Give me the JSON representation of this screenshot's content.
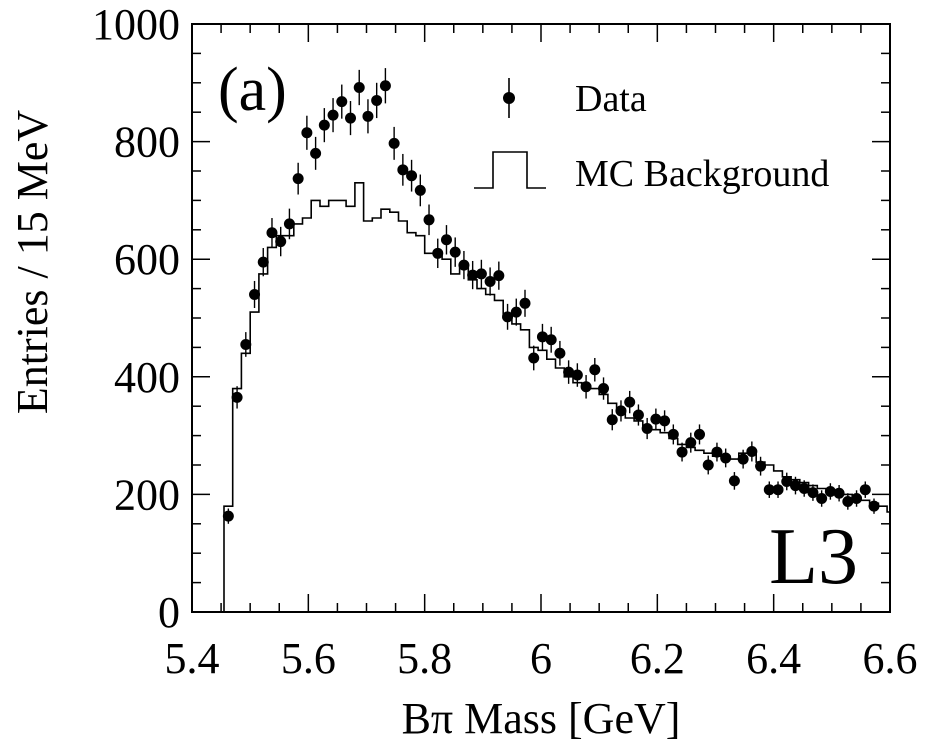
{
  "chart_data": {
    "type": "scatter",
    "panel_label": "(a)",
    "experiment_label": "L3",
    "xlabel": "Bπ Mass [GeV]",
    "ylabel": "Entries / 15 MeV",
    "xlim": [
      5.4,
      6.6
    ],
    "ylim": [
      0,
      1000
    ],
    "x_ticks": [
      5.4,
      5.6,
      5.8,
      6,
      6.2,
      6.4,
      6.6
    ],
    "x_tick_labels": [
      "5.4",
      "5.6",
      "5.8",
      "6",
      "6.2",
      "6.4",
      "6.6"
    ],
    "y_ticks": [
      0,
      200,
      400,
      600,
      800,
      1000
    ],
    "y_tick_labels": [
      "0",
      "200",
      "400",
      "600",
      "800",
      "1000"
    ],
    "grid": false,
    "legend_placement": "top-right",
    "legend": [
      {
        "label": "Data",
        "marker": "point-with-error-bar"
      },
      {
        "label": "MC Background",
        "marker": "step-histogram"
      }
    ],
    "series": [
      {
        "name": "Data",
        "style": "points",
        "color": "#000000",
        "x": [
          5.4625,
          5.4775,
          5.4925,
          5.5075,
          5.5225,
          5.5375,
          5.5525,
          5.5675,
          5.5825,
          5.5975,
          5.6125,
          5.6275,
          5.6425,
          5.6575,
          5.6725,
          5.6875,
          5.7025,
          5.7175,
          5.7325,
          5.7475,
          5.7625,
          5.7775,
          5.7925,
          5.8075,
          5.8225,
          5.8375,
          5.8525,
          5.8675,
          5.8825,
          5.8975,
          5.9125,
          5.9275,
          5.9425,
          5.9575,
          5.9725,
          5.9875,
          6.0025,
          6.0175,
          6.0325,
          6.0475,
          6.0625,
          6.0775,
          6.0925,
          6.1075,
          6.1225,
          6.1375,
          6.1525,
          6.1675,
          6.1825,
          6.1975,
          6.2125,
          6.2275,
          6.2425,
          6.2575,
          6.2725,
          6.2875,
          6.3025,
          6.3175,
          6.3325,
          6.3475,
          6.3625,
          6.3775,
          6.3925,
          6.4075,
          6.4225,
          6.4375,
          6.4525,
          6.4675,
          6.4825,
          6.4975,
          6.5125,
          6.5275,
          6.5425,
          6.5575,
          6.5725
        ],
        "y": [
          163,
          365,
          455,
          540,
          595,
          645,
          630,
          660,
          737,
          815,
          780,
          828,
          845,
          868,
          840,
          892,
          843,
          870,
          895,
          797,
          752,
          742,
          717,
          667,
          610,
          633,
          612,
          590,
          573,
          575,
          562,
          572,
          502,
          510,
          525,
          432,
          468,
          463,
          440,
          408,
          403,
          383,
          412,
          380,
          327,
          342,
          357,
          335,
          312,
          328,
          325,
          302,
          272,
          288,
          302,
          250,
          272,
          262,
          223,
          260,
          273,
          248,
          208,
          208,
          222,
          215,
          210,
          203,
          193,
          205,
          202,
          188,
          193,
          208,
          180
        ],
        "yerr": [
          13,
          19,
          21,
          23,
          24,
          25,
          25,
          26,
          27,
          29,
          28,
          29,
          29,
          29,
          29,
          30,
          29,
          30,
          30,
          28,
          27,
          27,
          27,
          26,
          25,
          25,
          25,
          24,
          24,
          24,
          24,
          24,
          22,
          23,
          23,
          21,
          22,
          22,
          21,
          20,
          20,
          20,
          20,
          19,
          18,
          18,
          19,
          18,
          18,
          18,
          18,
          17,
          16,
          17,
          17,
          16,
          16,
          16,
          15,
          16,
          17,
          16,
          14,
          14,
          15,
          15,
          14,
          14,
          14,
          14,
          14,
          14,
          14,
          14,
          13
        ]
      },
      {
        "name": "MC Background",
        "style": "step",
        "color": "#000000",
        "bin_edges": [
          5.455,
          5.47,
          5.485,
          5.5,
          5.515,
          5.53,
          5.545,
          5.56,
          5.575,
          5.59,
          5.605,
          5.62,
          5.635,
          5.65,
          5.665,
          5.68,
          5.695,
          5.71,
          5.725,
          5.74,
          5.755,
          5.77,
          5.785,
          5.8,
          5.815,
          5.83,
          5.845,
          5.86,
          5.875,
          5.89,
          5.905,
          5.92,
          5.935,
          5.95,
          5.965,
          5.98,
          5.995,
          6.01,
          6.025,
          6.04,
          6.055,
          6.07,
          6.085,
          6.1,
          6.115,
          6.13,
          6.145,
          6.16,
          6.175,
          6.19,
          6.205,
          6.22,
          6.235,
          6.25,
          6.265,
          6.28,
          6.295,
          6.31,
          6.325,
          6.34,
          6.355,
          6.37,
          6.385,
          6.4,
          6.415,
          6.43,
          6.445,
          6.46,
          6.475,
          6.49,
          6.505,
          6.52,
          6.535,
          6.55,
          6.565,
          6.58,
          6.595,
          6.6
        ],
        "values": [
          180,
          380,
          440,
          510,
          575,
          620,
          640,
          640,
          660,
          670,
          700,
          690,
          700,
          700,
          690,
          730,
          665,
          670,
          685,
          680,
          665,
          645,
          640,
          610,
          610,
          600,
          575,
          590,
          565,
          550,
          540,
          530,
          500,
          490,
          480,
          450,
          445,
          430,
          415,
          400,
          390,
          385,
          380,
          370,
          355,
          345,
          330,
          325,
          315,
          310,
          305,
          295,
          285,
          280,
          275,
          270,
          265,
          265,
          260,
          270,
          275,
          255,
          250,
          240,
          230,
          225,
          220,
          215,
          210,
          205,
          200,
          200,
          195,
          190,
          185,
          180,
          170
        ]
      }
    ]
  }
}
